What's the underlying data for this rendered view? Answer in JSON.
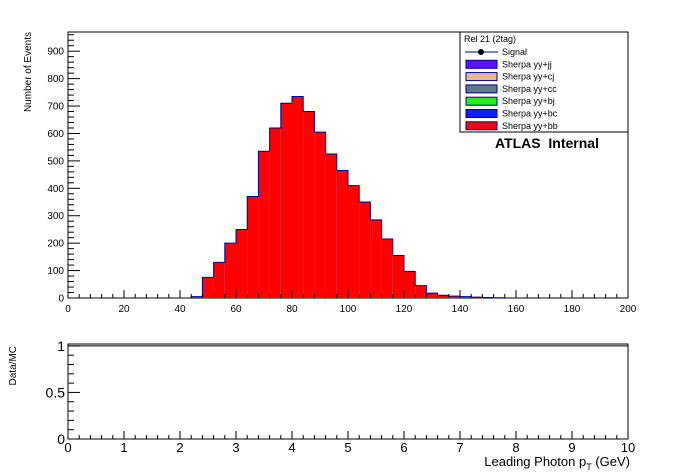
{
  "chart_data": [
    {
      "type": "bar",
      "ylabel": "Number of Events",
      "xlim": [
        0,
        200
      ],
      "ylim": [
        0,
        970
      ],
      "x_ticks": [
        "0",
        "20",
        "40",
        "60",
        "80",
        "100",
        "120",
        "140",
        "160",
        "180",
        "200"
      ],
      "y_ticks": [
        "0",
        "100",
        "200",
        "300",
        "400",
        "500",
        "600",
        "700",
        "800",
        "900"
      ],
      "bin_width": 4,
      "bin_low_edges": [
        44,
        48,
        52,
        56,
        60,
        64,
        68,
        72,
        76,
        80,
        84,
        88,
        92,
        96,
        100,
        104,
        108,
        112,
        116,
        120,
        124,
        128,
        132,
        136,
        140,
        144,
        148,
        152
      ],
      "values": [
        5,
        75,
        130,
        200,
        250,
        370,
        535,
        620,
        710,
        735,
        680,
        605,
        525,
        465,
        410,
        350,
        285,
        215,
        155,
        97,
        45,
        18,
        10,
        7,
        5,
        3,
        2,
        1
      ],
      "legend": {
        "header": "Rel 21 (2tag)",
        "placement": "top-right",
        "entries": [
          {
            "label": "Signal",
            "color": "#000000",
            "style": "marker"
          },
          {
            "label": "Sherpa yy+jj",
            "color": "#5a12ff",
            "style": "fill"
          },
          {
            "label": "Sherpa yy+cj",
            "color": "#e8b894",
            "style": "fill"
          },
          {
            "label": "Sherpa yy+cc",
            "color": "#5e7a86",
            "style": "fill"
          },
          {
            "label": "Sherpa yy+bj",
            "color": "#22ee22",
            "style": "fill"
          },
          {
            "label": "Sherpa yy+bc",
            "color": "#0a22ee",
            "style": "fill"
          },
          {
            "label": "Sherpa yy+bb",
            "color": "#ee0a0a",
            "style": "fill"
          }
        ]
      },
      "annotation": "ATLAS  Internal",
      "fill_color": "#ff0000",
      "outline_color": "#00008b"
    },
    {
      "type": "line",
      "ylabel": "Data/MC",
      "xlabel": "Leading Photon p",
      "xlabel_sub": "T",
      "xlabel_unit": " (GeV)",
      "xlim": [
        0,
        10
      ],
      "ylim": [
        0,
        1.02
      ],
      "x_ticks": [
        "0",
        "1",
        "2",
        "3",
        "4",
        "5",
        "6",
        "7",
        "8",
        "9",
        "10"
      ],
      "y_ticks": [
        "0",
        "0.5",
        "1"
      ],
      "reference_line": 1
    }
  ]
}
